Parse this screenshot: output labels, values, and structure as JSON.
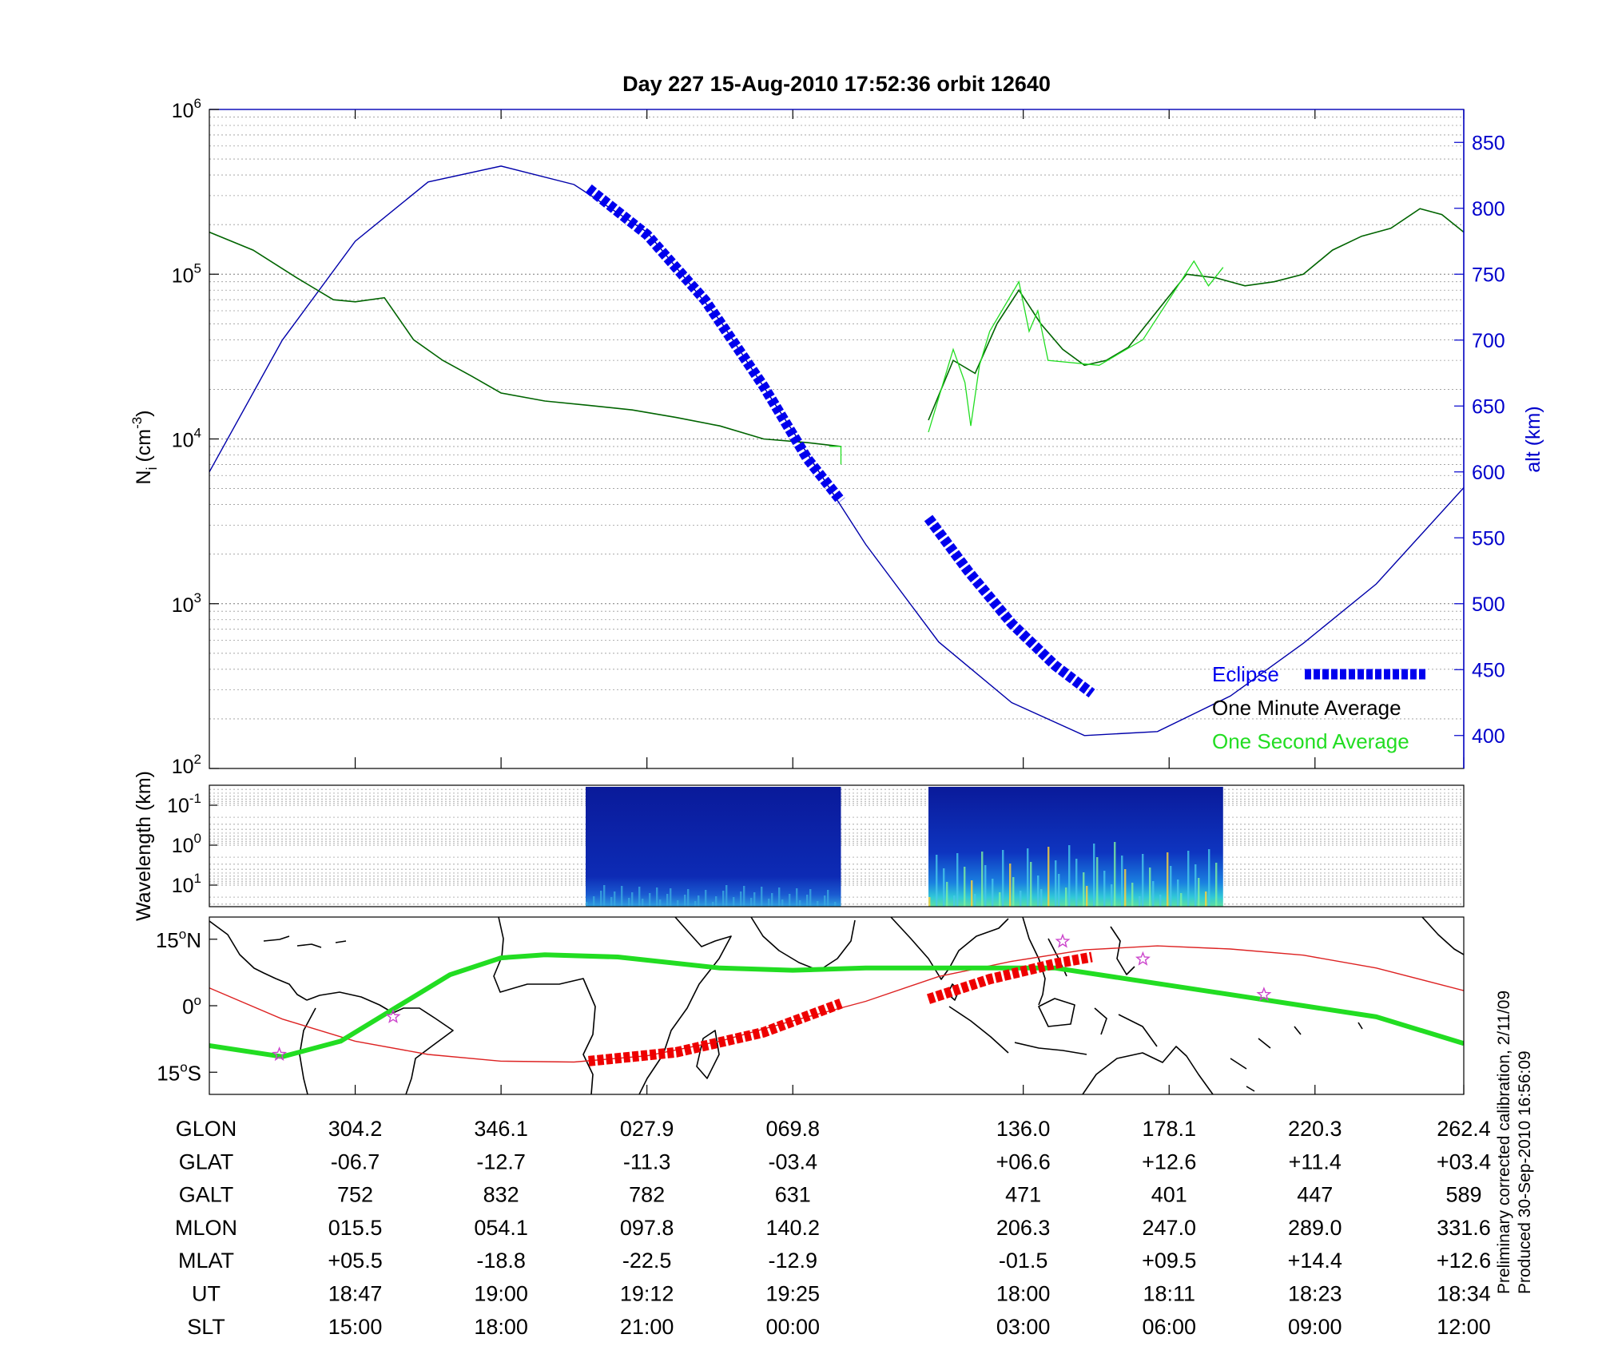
{
  "chart_data": {
    "title": "Day 227  15-Aug-2010 17:52:36   orbit 12640",
    "panels": [
      {
        "type": "line",
        "ylabel": "N",
        "ylabel_sub": "i",
        "ylabel_unit": "(cm",
        "ylabel_exp": "-3",
        "ylabel_close": ")",
        "yscale": "log",
        "ylim": [
          100,
          1000000
        ],
        "yticks": [
          {
            "base": "10",
            "exp": "2"
          },
          {
            "base": "10",
            "exp": "3"
          },
          {
            "base": "10",
            "exp": "4"
          },
          {
            "base": "10",
            "exp": "5"
          },
          {
            "base": "10",
            "exp": "6"
          }
        ],
        "y2label": "alt (km)",
        "y2lim": [
          375,
          875
        ],
        "y2ticks": [
          "400",
          "450",
          "500",
          "550",
          "600",
          "650",
          "700",
          "750",
          "800",
          "850"
        ],
        "xlim": [
          0,
          8.6
        ],
        "legend_position": "bottom-right",
        "legend": {
          "eclipse": "Eclipse",
          "minute": "One Minute Average",
          "second": "One Second Average"
        },
        "colors": {
          "altitude": "#0000aa",
          "eclipse": "#0000ee",
          "minute": "#006400",
          "second": "#22dd22"
        },
        "series": [
          {
            "role": "altitude",
            "x": [
              0,
              0.5,
              1,
              1.5,
              2,
              2.5,
              3,
              3.5,
              4,
              4.5,
              5,
              5.5,
              6,
              6.5,
              7,
              7.5,
              8,
              8.6
            ],
            "y": [
              600,
              700,
              775,
              820,
              832,
              818,
              782,
              715,
              631,
              545,
              471,
              425,
              400,
              403,
              430,
              470,
              515,
              588
            ]
          },
          {
            "role": "minute",
            "x": [
              0,
              0.3,
              0.6,
              0.85,
              1.0,
              1.2,
              1.4,
              1.6,
              1.8,
              2.0,
              2.3,
              2.6,
              2.9,
              3.2,
              3.5,
              3.8,
              4.1,
              4.33
            ],
            "y": [
              180000,
              140000,
              95000,
              70000,
              68000,
              72000,
              40000,
              30000,
              24000,
              19000,
              17000,
              16000,
              15000,
              13500,
              12000,
              10000,
              9500,
              9000
            ]
          },
          {
            "role": "minute",
            "x": [
              4.93,
              5.1,
              5.25,
              5.4,
              5.55,
              5.7,
              5.85,
              6.0,
              6.15,
              6.3,
              6.5,
              6.7,
              6.9,
              7.1,
              7.3,
              7.5,
              7.7,
              7.9,
              8.1,
              8.3,
              8.45,
              8.6
            ],
            "y": [
              13000,
              30000,
              25000,
              50000,
              80000,
              50000,
              35000,
              28000,
              30000,
              36000,
              60000,
              100000,
              95000,
              85000,
              90000,
              100000,
              140000,
              170000,
              190000,
              250000,
              230000,
              180000
            ]
          },
          {
            "role": "second",
            "x": [
              4.25,
              4.33,
              4.33
            ],
            "y": [
              9000,
              9000,
              7000
            ]
          },
          {
            "role": "second",
            "x": [
              4.93,
              5.1,
              5.18,
              5.22,
              5.28,
              5.35,
              5.55,
              5.62,
              5.68,
              5.75,
              6.1,
              6.4,
              6.75,
              6.85,
              6.95
            ],
            "y": [
              11000,
              35000,
              22000,
              12000,
              28000,
              45000,
              90000,
              45000,
              60000,
              30000,
              28000,
              40000,
              120000,
              85000,
              110000
            ]
          },
          {
            "role": "eclipse",
            "x": [
              2.6,
              3.0,
              3.4,
              3.8,
              4.1,
              4.33
            ],
            "y": [
              815,
              780,
              730,
              665,
              610,
              578
            ]
          },
          {
            "role": "eclipse",
            "x": [
              4.93,
              5.2,
              5.5,
              5.8,
              6.05
            ],
            "y": [
              565,
              525,
              485,
              453,
              432
            ]
          }
        ]
      },
      {
        "type": "heatmap",
        "ylabel": "Wavelength (km)",
        "yscale": "log",
        "yticks": [
          {
            "base": "10",
            "exp": "-1"
          },
          {
            "base": "10",
            "exp": "0"
          },
          {
            "base": "10",
            "exp": "1"
          }
        ],
        "segments": [
          {
            "x": [
              2.58,
              4.33
            ],
            "intensity": "low"
          },
          {
            "x": [
              4.93,
              6.95
            ],
            "intensity": "high"
          }
        ]
      },
      {
        "type": "map",
        "ylim": [
          -20,
          20
        ],
        "yticks": [
          {
            "value": "15",
            "unit": "N"
          },
          {
            "value": "0",
            "unit": ""
          },
          {
            "value": "15",
            "unit": "S"
          }
        ],
        "degree_symbol": "o",
        "colors": {
          "ground_track": "#dd2222",
          "dip_equator": "#22dd22",
          "eclipse": "#ee0000",
          "stars": "#cc44cc"
        },
        "ground_track": {
          "x": [
            0,
            0.5,
            1,
            1.5,
            2,
            2.5,
            3,
            3.5,
            4,
            4.5,
            5,
            5.5,
            6,
            6.5,
            7,
            7.5,
            8,
            8.6
          ],
          "lat": [
            4,
            -3,
            -8,
            -11,
            -12.5,
            -12.7,
            -11.3,
            -8,
            -3.4,
            1,
            6.6,
            10,
            12.6,
            13.5,
            12.8,
            11.4,
            8.5,
            3.4
          ]
        },
        "dip_equator": {
          "x": [
            0,
            0.5,
            0.9,
            1.3,
            1.65,
            2.0,
            2.3,
            2.8,
            3.5,
            4.0,
            4.5,
            5.0,
            5.3,
            5.8,
            6.3,
            6.9,
            7.5,
            8.0,
            8.6
          ],
          "lat": [
            -9,
            -11.5,
            -8,
            0,
            7,
            10.8,
            11.5,
            11,
            8.5,
            8,
            8.5,
            8.5,
            8.5,
            8.5,
            6,
            3,
            0,
            -2.5,
            -8.5
          ]
        },
        "eclipse_track": [
          {
            "x": [
              2.6,
              3.2,
              3.8,
              4.33
            ],
            "lat": [
              -12.5,
              -10.5,
              -6,
              0.5
            ]
          },
          {
            "x": [
              4.93,
              5.35,
              5.8,
              6.05
            ],
            "lat": [
              1.5,
              6,
              9.5,
              11
            ]
          }
        ],
        "stars": [
          {
            "x": 0.48,
            "lat": -11
          },
          {
            "x": 1.26,
            "lat": -2.5
          },
          {
            "x": 5.85,
            "lat": 14.5
          },
          {
            "x": 6.4,
            "lat": 10.5
          },
          {
            "x": 7.23,
            "lat": 2.5
          }
        ]
      }
    ],
    "table": {
      "columns_x": [
        1,
        2,
        3,
        4,
        5.58,
        6.58,
        7.58,
        8.6
      ],
      "rows": [
        {
          "label": "GLON",
          "values": [
            "304.2",
            "346.1",
            "027.9",
            "069.8",
            "136.0",
            "178.1",
            "220.3",
            "262.4"
          ]
        },
        {
          "label": "GLAT",
          "values": [
            "-06.7",
            "-12.7",
            "-11.3",
            "-03.4",
            "+06.6",
            "+12.6",
            "+11.4",
            "+03.4"
          ]
        },
        {
          "label": "GALT",
          "values": [
            "752",
            "832",
            "782",
            "631",
            "471",
            "401",
            "447",
            "589"
          ]
        },
        {
          "label": "MLON",
          "values": [
            "015.5",
            "054.1",
            "097.8",
            "140.2",
            "206.3",
            "247.0",
            "289.0",
            "331.6"
          ]
        },
        {
          "label": "MLAT",
          "values": [
            "+05.5",
            "-18.8",
            "-22.5",
            "-12.9",
            "-01.5",
            "+09.5",
            "+14.4",
            "+12.6"
          ]
        },
        {
          "label": "UT",
          "values": [
            "18:47",
            "19:00",
            "19:12",
            "19:25",
            "18:00",
            "18:11",
            "18:23",
            "18:34"
          ]
        },
        {
          "label": "SLT",
          "values": [
            "15:00",
            "18:00",
            "21:00",
            "00:00",
            "03:00",
            "06:00",
            "09:00",
            "12:00"
          ]
        }
      ]
    }
  },
  "footer": {
    "calibration_note": "Preliminary corrected calibration, 2/11/09",
    "produced": "Produced 30-Sep-2010 16:56:09"
  }
}
